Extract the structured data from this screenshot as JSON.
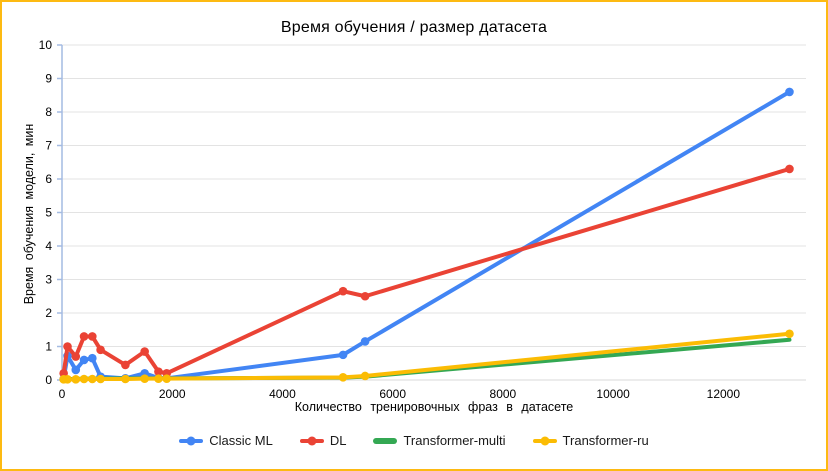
{
  "frame": {
    "border_color": "#FDBA12",
    "background": "#FFFFFF"
  },
  "colors": {
    "grid": "#E3E3E3",
    "baseline": "#D9D9D9",
    "axis": "#A4BBE2",
    "text": "#000000",
    "legend_text": "#1A1A1A"
  },
  "chart_data": {
    "type": "line",
    "title": "Время обучения / размер датасета",
    "xlabel": "Количество тренировочных фраз в датасете",
    "ylabel": "Время обучения модели, мин",
    "x": [
      30,
      100,
      250,
      400,
      550,
      700,
      1150,
      1500,
      1750,
      1900,
      5100,
      5500,
      13200
    ],
    "series": [
      {
        "name": "Classic ML",
        "color": "#4285F4",
        "markers": true,
        "values": [
          0.03,
          0.72,
          0.3,
          0.6,
          0.65,
          0.1,
          0.05,
          0.2,
          0.06,
          0.05,
          0.75,
          1.15,
          8.6
        ]
      },
      {
        "name": "DL",
        "color": "#EA4335",
        "markers": true,
        "values": [
          0.2,
          1.0,
          0.7,
          1.3,
          1.3,
          0.9,
          0.45,
          0.85,
          0.25,
          0.2,
          2.65,
          2.5,
          6.3
        ]
      },
      {
        "name": "Transformer-multi",
        "color": "#34A853",
        "markers": false,
        "values": [
          0.02,
          0.03,
          0.03,
          0.04,
          0.04,
          0.04,
          0.05,
          0.05,
          0.05,
          0.05,
          0.07,
          0.1,
          1.2
        ]
      },
      {
        "name": "Transformer-ru",
        "color": "#FBBC04",
        "markers": true,
        "values": [
          0.02,
          0.02,
          0.02,
          0.03,
          0.03,
          0.03,
          0.03,
          0.04,
          0.04,
          0.04,
          0.08,
          0.12,
          1.38
        ]
      }
    ],
    "xlim": [
      0,
      13500
    ],
    "ylim": [
      0,
      10
    ],
    "x_ticks": [
      0,
      2000,
      4000,
      6000,
      8000,
      10000,
      12000
    ],
    "y_ticks": [
      0,
      1,
      2,
      3,
      4,
      5,
      6,
      7,
      8,
      9,
      10
    ],
    "grid": "horizontal",
    "legend_position": "bottom"
  }
}
